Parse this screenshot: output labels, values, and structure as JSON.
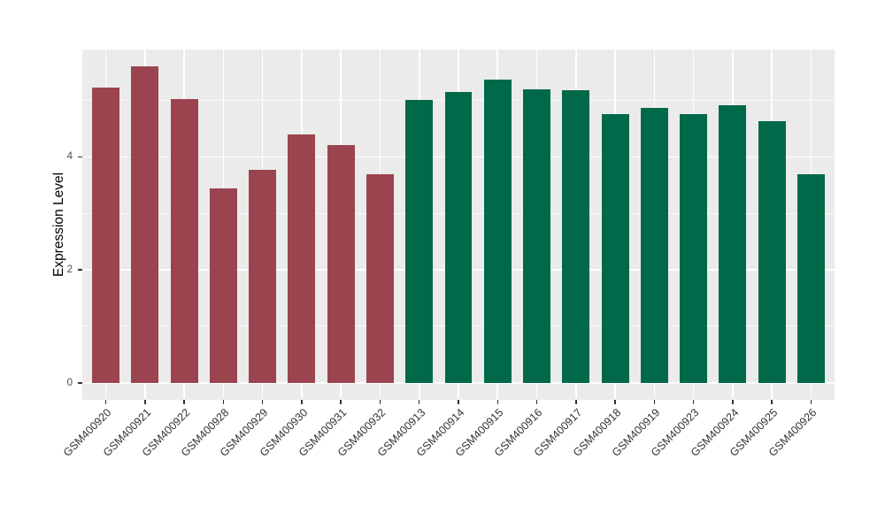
{
  "chart_data": {
    "type": "bar",
    "title": "",
    "ylabel": "Expression Level",
    "xlabel": "",
    "categories": [
      "GSM400920",
      "GSM400921",
      "GSM400922",
      "GSM400928",
      "GSM400929",
      "GSM400930",
      "GSM400931",
      "GSM400932",
      "GSM400913",
      "GSM400914",
      "GSM400915",
      "GSM400916",
      "GSM400917",
      "GSM400918",
      "GSM400919",
      "GSM400923",
      "GSM400924",
      "GSM400925",
      "GSM400926"
    ],
    "values": [
      5.22,
      5.61,
      5.02,
      3.44,
      3.77,
      4.39,
      4.21,
      3.7,
      5.0,
      5.15,
      5.36,
      5.19,
      5.18,
      4.76,
      4.86,
      4.75,
      4.91,
      4.63,
      3.7
    ],
    "bar_groups": [
      "group1",
      "group1",
      "group1",
      "group1",
      "group1",
      "group1",
      "group1",
      "group1",
      "group2",
      "group2",
      "group2",
      "group2",
      "group2",
      "group2",
      "group2",
      "group2",
      "group2",
      "group2",
      "group2"
    ],
    "group_colors": {
      "group1": "#9B4450",
      "group2": "#006949"
    },
    "yticks": [
      0,
      2,
      4
    ],
    "yminor": [
      1,
      3,
      5
    ],
    "ylim": [
      -0.3,
      5.9
    ],
    "grid": "on",
    "legend": "none",
    "x_tick_rotation": 45,
    "panel_background": "#EBEBEB",
    "grid_color": "#FFFFFF",
    "axis_text_color": "#4D4D4D"
  }
}
